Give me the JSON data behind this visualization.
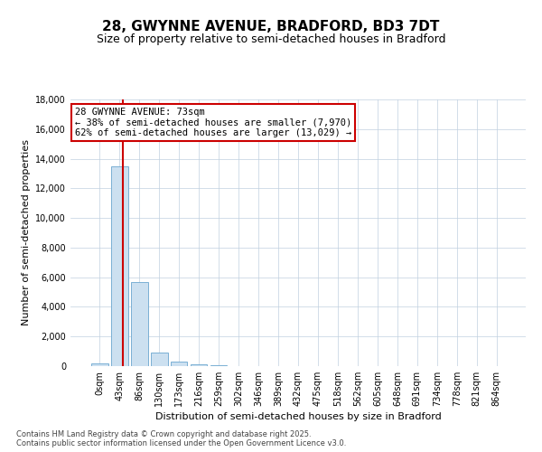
{
  "title": "28, GWYNNE AVENUE, BRADFORD, BD3 7DT",
  "subtitle": "Size of property relative to semi-detached houses in Bradford",
  "xlabel": "Distribution of semi-detached houses by size in Bradford",
  "ylabel": "Number of semi-detached properties",
  "property_size": 73,
  "pct_smaller": 38,
  "pct_larger": 62,
  "count_smaller": 7970,
  "count_larger": 13029,
  "bin_labels": [
    "0sqm",
    "43sqm",
    "86sqm",
    "130sqm",
    "173sqm",
    "216sqm",
    "259sqm",
    "302sqm",
    "346sqm",
    "389sqm",
    "432sqm",
    "475sqm",
    "518sqm",
    "562sqm",
    "605sqm",
    "648sqm",
    "691sqm",
    "734sqm",
    "778sqm",
    "821sqm",
    "864sqm"
  ],
  "bar_values": [
    200,
    13500,
    5700,
    900,
    300,
    100,
    50,
    10,
    0,
    0,
    0,
    0,
    0,
    0,
    0,
    0,
    0,
    0,
    0,
    0,
    0
  ],
  "bar_color": "#cce0f0",
  "bar_edge_color": "#7ab0d4",
  "red_line_color": "#cc0000",
  "background_color": "#ffffff",
  "grid_color": "#c0d0e0",
  "ylim": [
    0,
    18000
  ],
  "yticks": [
    0,
    2000,
    4000,
    6000,
    8000,
    10000,
    12000,
    14000,
    16000,
    18000
  ],
  "footnote": "Contains HM Land Registry data © Crown copyright and database right 2025.\nContains public sector information licensed under the Open Government Licence v3.0.",
  "title_fontsize": 11,
  "subtitle_fontsize": 9,
  "axis_label_fontsize": 8,
  "tick_fontsize": 7,
  "annotation_fontsize": 7.5,
  "footnote_fontsize": 6
}
